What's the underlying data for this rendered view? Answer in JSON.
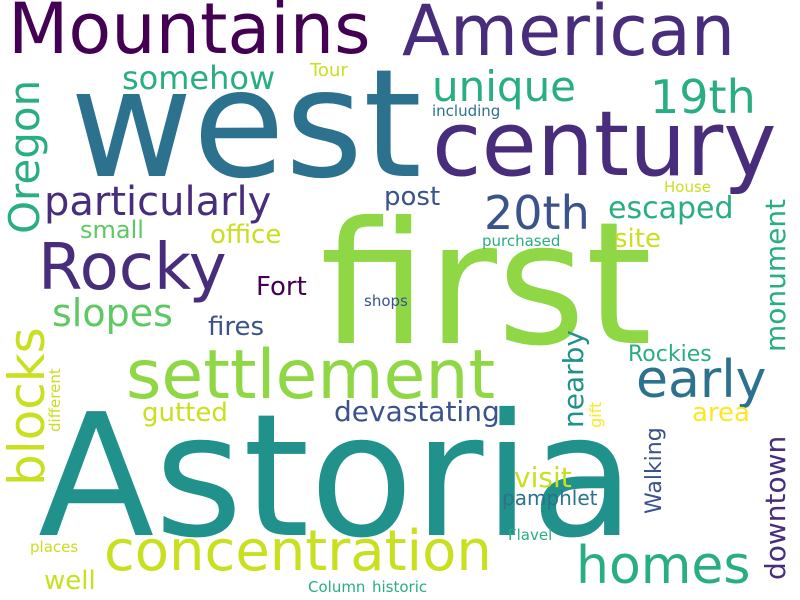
{
  "words": {
    "astoria": "Astoria",
    "west": "west",
    "first": "first",
    "mountains": "Mountains",
    "american": "American",
    "century": "century",
    "rocky": "Rocky",
    "settlement": "settlement",
    "concentration": "concentration",
    "early": "early",
    "homes": "homes",
    "particularly": "particularly",
    "oregon": "Oregon",
    "blocks": "blocks",
    "unique": "unique",
    "19th": "19th",
    "20th": "20th",
    "slopes": "slopes",
    "somehow": "somehow",
    "escaped": "escaped",
    "devastating": "devastating",
    "downtown": "downtown",
    "monument": "monument",
    "visit": "visit",
    "office": "office",
    "site": "site",
    "post": "post",
    "small": "small",
    "fort": "Fort",
    "fires": "fires",
    "rockies": "Rockies",
    "gutted": "gutted",
    "area": "area",
    "nearby": "nearby",
    "walking": "Walking",
    "well": "well",
    "pamphlet": "pamphlet",
    "tour": "Tour",
    "including": "including",
    "house": "House",
    "purchased": "purchased",
    "shops": "shops",
    "gift": "gift",
    "different": "different",
    "places": "places",
    "flavel": "Flavel",
    "column": "Column",
    "historic": "historic"
  },
  "colors": {
    "dark_purple": "#440154",
    "indigo": "#472d7b",
    "violet_blue": "#3b528b",
    "steel_blue": "#2c728e",
    "teal": "#21918c",
    "sea_green": "#28ae80",
    "green": "#5ec962",
    "lime": "#9fd938",
    "yellow_green": "#c8e020",
    "yellow": "#fde725"
  }
}
